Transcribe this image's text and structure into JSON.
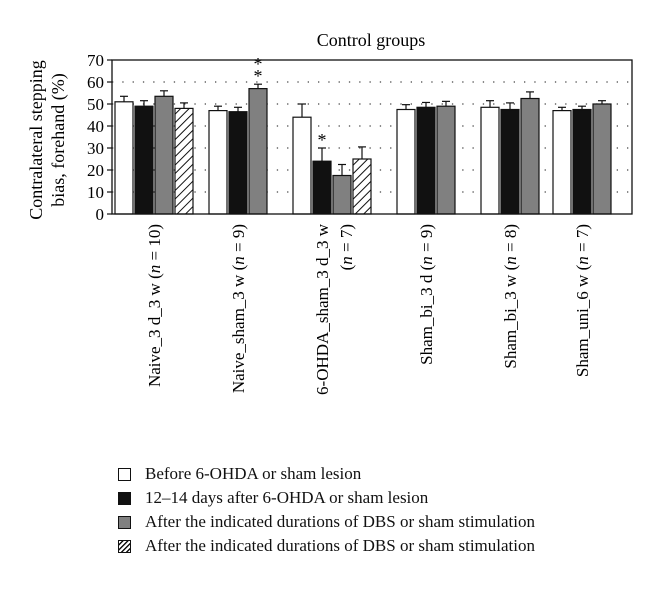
{
  "chart_data": {
    "type": "bar",
    "title": "Control groups",
    "ylabel_lines": [
      "Contralateral stepping",
      "bias, forehand (%)"
    ],
    "ylim": [
      0,
      70
    ],
    "yticks": [
      "0",
      "10",
      "20",
      "30",
      "40",
      "50",
      "60",
      "70"
    ],
    "grid": "dotted horizontal",
    "categories": [
      [
        "Naive_3 d_3 w (",
        "n",
        " = 10)"
      ],
      [
        "Naive_sham_3 w (",
        "n",
        " = 9)"
      ],
      [
        "6-OHDA_sham_3 d_3 w",
        "(",
        "n",
        " = 7)"
      ],
      [
        "Sham_bi_3 d (",
        "n",
        " = 9)"
      ],
      [
        "Sham_bi_3 w (",
        "n",
        " = 8)"
      ],
      [
        "Sham_uni_6 w (",
        "n",
        " = 7)"
      ]
    ],
    "series": [
      {
        "name": "Before 6-OHDA or sham lesion",
        "fill": "#ffffff",
        "pattern": "none",
        "values": [
          51,
          47,
          44,
          47.5,
          48.5,
          47
        ],
        "errors": [
          2.5,
          2,
          6,
          2.2,
          3,
          1.5
        ]
      },
      {
        "name": "12–14 days after 6-OHDA or sham lesion",
        "fill": "#111111",
        "pattern": "none",
        "values": [
          49,
          46.5,
          24,
          48.5,
          47.5,
          47.5
        ],
        "errors": [
          2.5,
          2,
          6,
          2.2,
          3,
          1.5
        ]
      },
      {
        "name": "After the indicated durations of DBS or sham stimulation",
        "fill": "#808080",
        "pattern": "none",
        "values": [
          53.5,
          57,
          17.5,
          49,
          52.5,
          50
        ],
        "errors": [
          2.5,
          2,
          5,
          2.2,
          3,
          1.5
        ]
      },
      {
        "name": "After the indicated durations of DBS or sham stimulation",
        "fill": "#ffffff",
        "pattern": "hatch",
        "values": [
          48,
          null,
          25,
          null,
          null,
          null
        ],
        "errors": [
          2.5,
          null,
          5.5,
          null,
          null,
          null
        ]
      }
    ],
    "annotations": [
      {
        "text": "*",
        "group": 1,
        "series": 2,
        "offset": 0
      },
      {
        "text": "*",
        "group": 1,
        "series": 2,
        "offset": 1
      },
      {
        "text": "*",
        "group": 2,
        "series": 1,
        "offset": 0
      }
    ],
    "legend_position": "bottom"
  }
}
